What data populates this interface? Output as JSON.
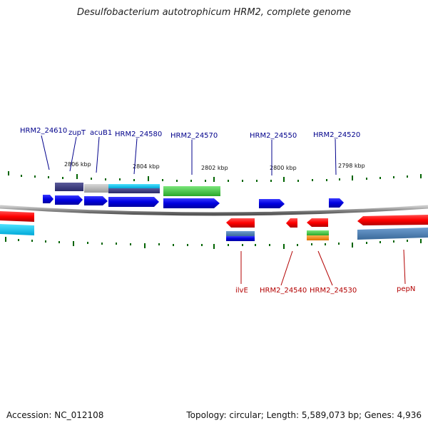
{
  "title": "Desulfobacterium autotrophicum HRM2, complete genome",
  "footer": {
    "accession": "Accession: NC_012108",
    "summary": "Topology: circular; Length: 5,589,073 bp; Genes: 4,936"
  },
  "colors": {
    "forward_gene": "#0000ee",
    "reverse_gene": "#ff0000",
    "backbone": "#888888",
    "tick": "#006400",
    "forward_label": "#00008b",
    "reverse_label": "#b30000"
  },
  "scale_labels": [
    "2806 kbp",
    "2804 kbp",
    "2802 kbp",
    "2800 kbp",
    "2798 kbp"
  ],
  "forward_labels": [
    "HRM2_24610",
    "zupT",
    "acuB1",
    "HRM2_24580",
    "HRM2_24570",
    "HRM2_24550",
    "HRM2_24520"
  ],
  "reverse_labels": [
    "ilvE",
    "HRM2_24540",
    "HRM2_24530",
    "pepN"
  ]
}
